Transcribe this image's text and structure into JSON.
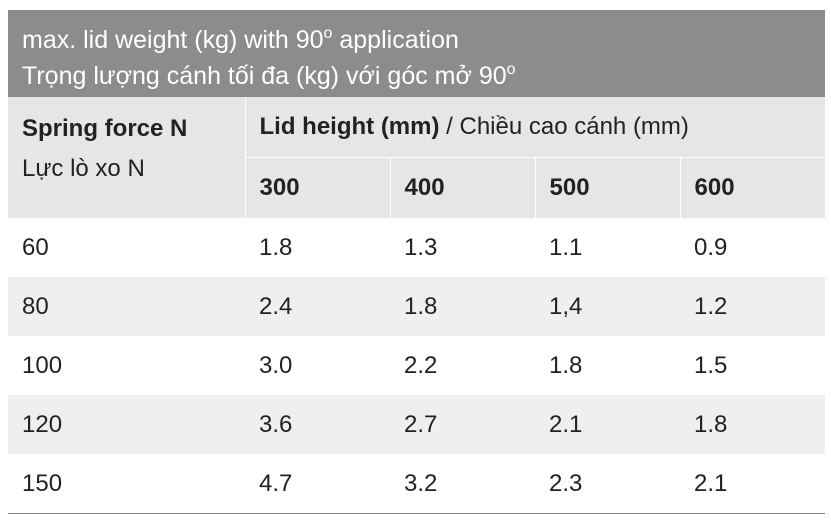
{
  "header": {
    "title": {
      "line1": [
        "max. lid weight (kg) with 90",
        "o",
        " application"
      ],
      "line2": [
        "Trọng lượng cánh tối đa (kg) với góc mở 90",
        "o"
      ]
    }
  },
  "table": {
    "row_header": {
      "title": "Spring force N",
      "subtitle": "Lực lò xo N"
    },
    "column_group": {
      "title": "Lid height (mm)",
      "subtitle": " / Chiều cao cánh (mm)"
    },
    "columns": [
      "300",
      "400",
      "500",
      "600"
    ],
    "rows": [
      [
        "60",
        "1.8",
        "1.3",
        "1.1",
        "0.9"
      ],
      [
        "80",
        "2.4",
        "1.8",
        "1,4",
        "1.2"
      ],
      [
        "100",
        "3.0",
        "2.2",
        "1.8",
        "1.5"
      ],
      [
        "120",
        "3.6",
        "2.7",
        "2.1",
        "1.8"
      ],
      [
        "150",
        "4.7",
        "3.2",
        "2.3",
        "2.1"
      ]
    ]
  }
}
